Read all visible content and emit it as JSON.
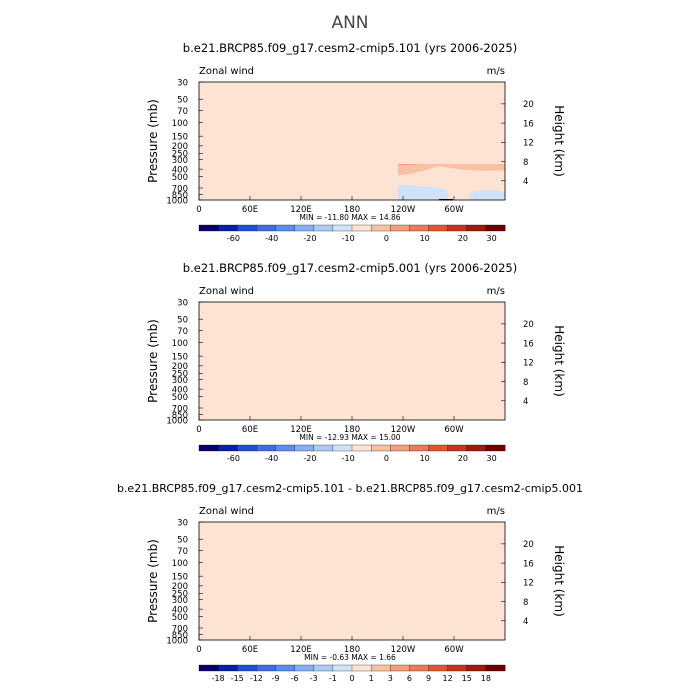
{
  "page_title": "ANN",
  "panels": [
    {
      "title": "b.e21.BRCP85.f09_g17.cesm2-cmip5.101 (yrs 2006-2025)",
      "variable_label": "Zonal wind",
      "units": "m/s",
      "stats": "MIN = -11.80   MAX =  14.86",
      "colorbar_labels": [
        "-60",
        "-40",
        "-20",
        "-10",
        "0",
        "10",
        "20",
        "30"
      ]
    },
    {
      "title": "b.e21.BRCP85.f09_g17.cesm2-cmip5.001 (yrs 2006-2025)",
      "variable_label": "Zonal wind",
      "units": "m/s",
      "stats": "MIN = -12.93   MAX =  15.00",
      "colorbar_labels": [
        "-60",
        "-40",
        "-20",
        "-10",
        "0",
        "10",
        "20",
        "30"
      ]
    },
    {
      "title": "b.e21.BRCP85.f09_g17.cesm2-cmip5.101 - b.e21.BRCP85.f09_g17.cesm2-cmip5.001",
      "variable_label": "Zonal wind",
      "units": "m/s",
      "stats": "MIN = -0.63   MAX =  1.66",
      "colorbar_labels": [
        "-18",
        "-15",
        "-12",
        "-9",
        "-6",
        "-3",
        "-1",
        "0",
        "1",
        "3",
        "6",
        "9",
        "12",
        "15",
        "18"
      ]
    }
  ],
  "chart_data": [
    {
      "type": "contour",
      "title": "b.e21.BRCP85.f09_g17.cesm2-cmip5.101 (yrs 2006-2025)",
      "ylabel": "Pressure (mb)",
      "ylabel_right": "Height (km)",
      "x_ticks": [
        "0",
        "60E",
        "120E",
        "180",
        "120W",
        "60W"
      ],
      "y_ticks": [
        "30",
        "50",
        "70",
        "100",
        "150",
        "200",
        "250",
        "300",
        "400",
        "500",
        "700",
        "850",
        "1000"
      ],
      "y_ticks_right": [
        "20",
        "16",
        "12",
        "8",
        "4"
      ],
      "min": -11.8,
      "max": 14.86,
      "levels": [
        -60,
        -40,
        -20,
        -10,
        0,
        10,
        20,
        30
      ]
    },
    {
      "type": "contour",
      "title": "b.e21.BRCP85.f09_g17.cesm2-cmip5.001 (yrs 2006-2025)",
      "ylabel": "Pressure (mb)",
      "ylabel_right": "Height (km)",
      "x_ticks": [
        "0",
        "60E",
        "120E",
        "180",
        "120W",
        "60W"
      ],
      "y_ticks": [
        "30",
        "50",
        "70",
        "100",
        "150",
        "200",
        "250",
        "300",
        "400",
        "500",
        "700",
        "850",
        "1000"
      ],
      "y_ticks_right": [
        "20",
        "16",
        "12",
        "8",
        "4"
      ],
      "min": -12.93,
      "max": 15.0,
      "levels": [
        -60,
        -40,
        -20,
        -10,
        0,
        10,
        20,
        30
      ]
    },
    {
      "type": "contour",
      "title": "b.e21.BRCP85.f09_g17.cesm2-cmip5.101 - b.e21.BRCP85.f09_g17.cesm2-cmip5.001",
      "ylabel": "Pressure (mb)",
      "ylabel_right": "Height (km)",
      "x_ticks": [
        "0",
        "60E",
        "120E",
        "180",
        "120W",
        "60W"
      ],
      "y_ticks": [
        "30",
        "50",
        "70",
        "100",
        "150",
        "200",
        "250",
        "300",
        "400",
        "500",
        "700",
        "850",
        "1000"
      ],
      "y_ticks_right": [
        "20",
        "16",
        "12",
        "8",
        "4"
      ],
      "min": -0.63,
      "max": 1.66,
      "levels": [
        -18,
        -15,
        -12,
        -9,
        -6,
        -3,
        -1,
        0,
        1,
        3,
        6,
        9,
        12,
        15,
        18
      ]
    }
  ],
  "colors": {
    "colorbar_main": [
      "#08006b",
      "#0a1fa8",
      "#1f4fd6",
      "#3d6ee8",
      "#5c8cf0",
      "#88aef4",
      "#adc9f8",
      "#cfe2fa",
      "#fde3d3",
      "#f9c1a3",
      "#f39f7d",
      "#ec7a56",
      "#e25634",
      "#c7321b",
      "#9e1a0c",
      "#6e0000"
    ],
    "colorbar_diff": [
      "#08006b",
      "#0a1fa8",
      "#1f4fd6",
      "#3d6ee8",
      "#5c8cf0",
      "#88aef4",
      "#adc9f8",
      "#cfe2fa",
      "#fde3d3",
      "#f9c1a3",
      "#f39f7d",
      "#ec7a56",
      "#e25634",
      "#c7321b",
      "#9e1a0c",
      "#6e0000"
    ],
    "pos_light": "#fde3d3",
    "pos_mid": "#f9c1a3",
    "pos_strong": "#f39f7d",
    "pos_core": "#ec7a56",
    "neg_light": "#cfe2fa",
    "neg_mid": "#adc9f8",
    "neg_strong": "#88aef4"
  }
}
